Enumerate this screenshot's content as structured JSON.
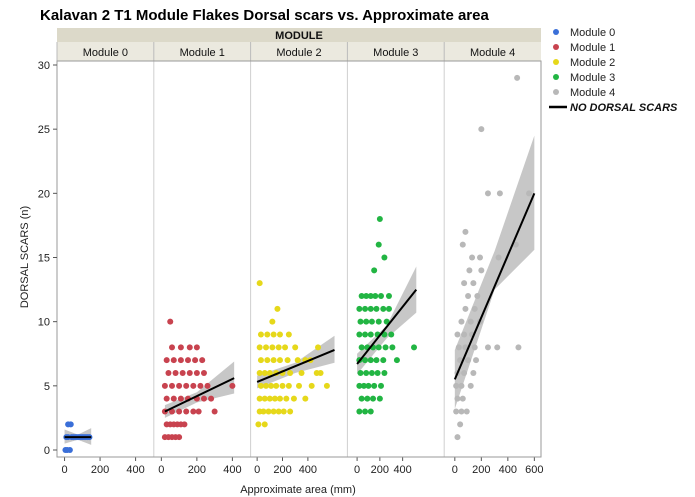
{
  "chart_data": {
    "type": "scatter",
    "title": "Kalavan 2 T1 Module Flakes Dorsal scars vs. Approximate area",
    "group_header": "MODULE",
    "xlabel": "Approximate area (mm)",
    "ylabel": "DORSAL SCARS (n)",
    "ylim": [
      0,
      30
    ],
    "yticks": [
      0,
      5,
      10,
      15,
      20,
      25,
      30
    ],
    "grid": false,
    "legend_position": "right",
    "fit_legend_label": "NO DORSAL SCARS",
    "fit_color": "#000000",
    "band_color": "#bdbdbd",
    "panels": [
      {
        "name": "Module 0",
        "color": "#3a6fd8",
        "xlim": [
          -20,
          480
        ],
        "xticks": [
          0,
          200,
          400
        ],
        "xtick_labels": [
          "0",
          "200",
          "400"
        ],
        "points": [
          [
            5,
            0
          ],
          [
            15,
            0
          ],
          [
            30,
            0
          ],
          [
            10,
            1
          ],
          [
            20,
            1
          ],
          [
            40,
            1
          ],
          [
            60,
            1
          ],
          [
            80,
            1
          ],
          [
            100,
            1
          ],
          [
            120,
            1
          ],
          [
            140,
            1
          ],
          [
            20,
            2
          ],
          [
            35,
            2
          ],
          [
            50,
            1
          ],
          [
            70,
            1
          ],
          [
            90,
            1
          ],
          [
            110,
            1
          ],
          [
            130,
            1
          ]
        ],
        "fit": [
          [
            0,
            1.0
          ],
          [
            150,
            1.0
          ]
        ],
        "band_upper": [
          [
            0,
            1.6
          ],
          [
            75,
            1.2
          ],
          [
            150,
            1.7
          ]
        ],
        "band_lower": [
          [
            0,
            0.5
          ],
          [
            75,
            0.8
          ],
          [
            150,
            0.4
          ]
        ]
      },
      {
        "name": "Module 1",
        "color": "#c8434f",
        "xlim": [
          -20,
          480
        ],
        "xticks": [
          0,
          200,
          400
        ],
        "xtick_labels": [
          "0",
          "200",
          "400"
        ],
        "points": [
          [
            20,
            1
          ],
          [
            40,
            1
          ],
          [
            60,
            1
          ],
          [
            80,
            1
          ],
          [
            100,
            1
          ],
          [
            30,
            2
          ],
          [
            50,
            2
          ],
          [
            70,
            2
          ],
          [
            90,
            2
          ],
          [
            110,
            2
          ],
          [
            130,
            2
          ],
          [
            20,
            3
          ],
          [
            60,
            3
          ],
          [
            100,
            3
          ],
          [
            140,
            3
          ],
          [
            180,
            3
          ],
          [
            210,
            3
          ],
          [
            300,
            3
          ],
          [
            30,
            4
          ],
          [
            70,
            4
          ],
          [
            110,
            4
          ],
          [
            150,
            4
          ],
          [
            200,
            4
          ],
          [
            240,
            4
          ],
          [
            280,
            4
          ],
          [
            20,
            5
          ],
          [
            60,
            5
          ],
          [
            100,
            5
          ],
          [
            140,
            5
          ],
          [
            180,
            5
          ],
          [
            220,
            5
          ],
          [
            260,
            5
          ],
          [
            400,
            5
          ],
          [
            40,
            6
          ],
          [
            80,
            6
          ],
          [
            120,
            6
          ],
          [
            160,
            6
          ],
          [
            200,
            6
          ],
          [
            240,
            6
          ],
          [
            30,
            7
          ],
          [
            70,
            7
          ],
          [
            110,
            7
          ],
          [
            150,
            7
          ],
          [
            190,
            7
          ],
          [
            230,
            7
          ],
          [
            60,
            8
          ],
          [
            110,
            8
          ],
          [
            160,
            8
          ],
          [
            200,
            8
          ],
          [
            50,
            10
          ]
        ],
        "fit": [
          [
            20,
            3.0
          ],
          [
            410,
            5.6
          ]
        ],
        "band_upper": [
          [
            20,
            3.5
          ],
          [
            200,
            4.5
          ],
          [
            410,
            6.9
          ]
        ],
        "band_lower": [
          [
            20,
            2.5
          ],
          [
            200,
            3.7
          ],
          [
            410,
            4.4
          ]
        ]
      },
      {
        "name": "Module 2",
        "color": "#e6d81a",
        "xlim": [
          -20,
          680
        ],
        "xticks": [
          0,
          200,
          400
        ],
        "xtick_labels": [
          "0",
          "200",
          "400"
        ],
        "points": [
          [
            10,
            2
          ],
          [
            60,
            2
          ],
          [
            20,
            3
          ],
          [
            50,
            3
          ],
          [
            90,
            3
          ],
          [
            130,
            3
          ],
          [
            170,
            3
          ],
          [
            210,
            3
          ],
          [
            260,
            3
          ],
          [
            20,
            4
          ],
          [
            60,
            4
          ],
          [
            100,
            4
          ],
          [
            140,
            4
          ],
          [
            180,
            4
          ],
          [
            230,
            4
          ],
          [
            290,
            4
          ],
          [
            380,
            4
          ],
          [
            30,
            5
          ],
          [
            70,
            5
          ],
          [
            110,
            5
          ],
          [
            150,
            5
          ],
          [
            200,
            5
          ],
          [
            250,
            5
          ],
          [
            330,
            5
          ],
          [
            430,
            5
          ],
          [
            550,
            5
          ],
          [
            20,
            6
          ],
          [
            60,
            6
          ],
          [
            100,
            6
          ],
          [
            150,
            6
          ],
          [
            200,
            6
          ],
          [
            260,
            6
          ],
          [
            350,
            6
          ],
          [
            470,
            6
          ],
          [
            30,
            7
          ],
          [
            80,
            7
          ],
          [
            130,
            7
          ],
          [
            180,
            7
          ],
          [
            240,
            7
          ],
          [
            320,
            7
          ],
          [
            380,
            7
          ],
          [
            20,
            8
          ],
          [
            70,
            8
          ],
          [
            120,
            8
          ],
          [
            170,
            8
          ],
          [
            220,
            8
          ],
          [
            300,
            8
          ],
          [
            30,
            9
          ],
          [
            80,
            9
          ],
          [
            130,
            9
          ],
          [
            180,
            9
          ],
          [
            250,
            9
          ],
          [
            120,
            10
          ],
          [
            160,
            11
          ],
          [
            20,
            13
          ],
          [
            420,
            7
          ],
          [
            480,
            8
          ],
          [
            500,
            6
          ]
        ],
        "fit": [
          [
            0,
            5.3
          ],
          [
            610,
            7.8
          ]
        ],
        "band_upper": [
          [
            0,
            5.8
          ],
          [
            300,
            6.8
          ],
          [
            610,
            8.9
          ]
        ],
        "band_lower": [
          [
            0,
            4.8
          ],
          [
            300,
            6.0
          ],
          [
            610,
            6.8
          ]
        ]
      },
      {
        "name": "Module 3",
        "color": "#22b543",
        "xlim": [
          -50,
          730
        ],
        "xticks": [
          0,
          200,
          400
        ],
        "xtick_labels": [
          "0",
          "200",
          "400"
        ],
        "points": [
          [
            20,
            3
          ],
          [
            70,
            3
          ],
          [
            120,
            3
          ],
          [
            40,
            4
          ],
          [
            90,
            4
          ],
          [
            140,
            4
          ],
          [
            200,
            4
          ],
          [
            20,
            5
          ],
          [
            60,
            5
          ],
          [
            100,
            5
          ],
          [
            150,
            5
          ],
          [
            210,
            5
          ],
          [
            30,
            6
          ],
          [
            80,
            6
          ],
          [
            130,
            6
          ],
          [
            180,
            6
          ],
          [
            240,
            6
          ],
          [
            20,
            7
          ],
          [
            70,
            7
          ],
          [
            120,
            7
          ],
          [
            170,
            7
          ],
          [
            230,
            7
          ],
          [
            350,
            7
          ],
          [
            40,
            8
          ],
          [
            90,
            8
          ],
          [
            140,
            8
          ],
          [
            190,
            8
          ],
          [
            250,
            8
          ],
          [
            310,
            8
          ],
          [
            500,
            8
          ],
          [
            20,
            9
          ],
          [
            70,
            9
          ],
          [
            120,
            9
          ],
          [
            180,
            9
          ],
          [
            240,
            9
          ],
          [
            300,
            9
          ],
          [
            30,
            10
          ],
          [
            80,
            10
          ],
          [
            130,
            10
          ],
          [
            190,
            10
          ],
          [
            260,
            10
          ],
          [
            20,
            11
          ],
          [
            70,
            11
          ],
          [
            120,
            11
          ],
          [
            170,
            11
          ],
          [
            230,
            11
          ],
          [
            280,
            11
          ],
          [
            40,
            12
          ],
          [
            80,
            12
          ],
          [
            120,
            12
          ],
          [
            160,
            12
          ],
          [
            210,
            12
          ],
          [
            280,
            12
          ],
          [
            150,
            14
          ],
          [
            240,
            15
          ],
          [
            190,
            16
          ],
          [
            200,
            18
          ]
        ],
        "fit": [
          [
            0,
            6.7
          ],
          [
            520,
            12.5
          ]
        ],
        "band_upper": [
          [
            0,
            7.5
          ],
          [
            260,
            9.7
          ],
          [
            520,
            14.3
          ]
        ],
        "band_lower": [
          [
            0,
            5.9
          ],
          [
            260,
            8.7
          ],
          [
            520,
            10.7
          ]
        ]
      },
      {
        "name": "Module 4",
        "color": "#b8b8b8",
        "xlim": [
          -50,
          620
        ],
        "xticks": [
          0,
          200,
          400,
          600
        ],
        "xtick_labels": [
          "0",
          "200",
          "400",
          "600"
        ],
        "points": [
          [
            20,
            1
          ],
          [
            40,
            2
          ],
          [
            10,
            3
          ],
          [
            50,
            3
          ],
          [
            90,
            3
          ],
          [
            20,
            4
          ],
          [
            60,
            4
          ],
          [
            10,
            5
          ],
          [
            50,
            5
          ],
          [
            120,
            5
          ],
          [
            20,
            6
          ],
          [
            70,
            6
          ],
          [
            140,
            6
          ],
          [
            40,
            7
          ],
          [
            100,
            7
          ],
          [
            160,
            7
          ],
          [
            30,
            8
          ],
          [
            80,
            8
          ],
          [
            150,
            8
          ],
          [
            250,
            8
          ],
          [
            320,
            8
          ],
          [
            480,
            8
          ],
          [
            20,
            9
          ],
          [
            70,
            9
          ],
          [
            130,
            9
          ],
          [
            50,
            10
          ],
          [
            120,
            10
          ],
          [
            190,
            10
          ],
          [
            80,
            11
          ],
          [
            150,
            11
          ],
          [
            100,
            12
          ],
          [
            170,
            12
          ],
          [
            70,
            13
          ],
          [
            140,
            13
          ],
          [
            110,
            14
          ],
          [
            200,
            14
          ],
          [
            130,
            15
          ],
          [
            190,
            15
          ],
          [
            330,
            15
          ],
          [
            60,
            16
          ],
          [
            460,
            16
          ],
          [
            80,
            17
          ],
          [
            250,
            20
          ],
          [
            340,
            20
          ],
          [
            560,
            20
          ],
          [
            200,
            25
          ],
          [
            470,
            29
          ]
        ],
        "fit": [
          [
            0,
            5.5
          ],
          [
            600,
            20.0
          ]
        ],
        "band_upper": [
          [
            0,
            7.8
          ],
          [
            300,
            15.5
          ],
          [
            600,
            24.5
          ]
        ],
        "band_lower": [
          [
            0,
            3.2
          ],
          [
            300,
            12.5
          ],
          [
            600,
            15.6
          ]
        ]
      }
    ]
  }
}
